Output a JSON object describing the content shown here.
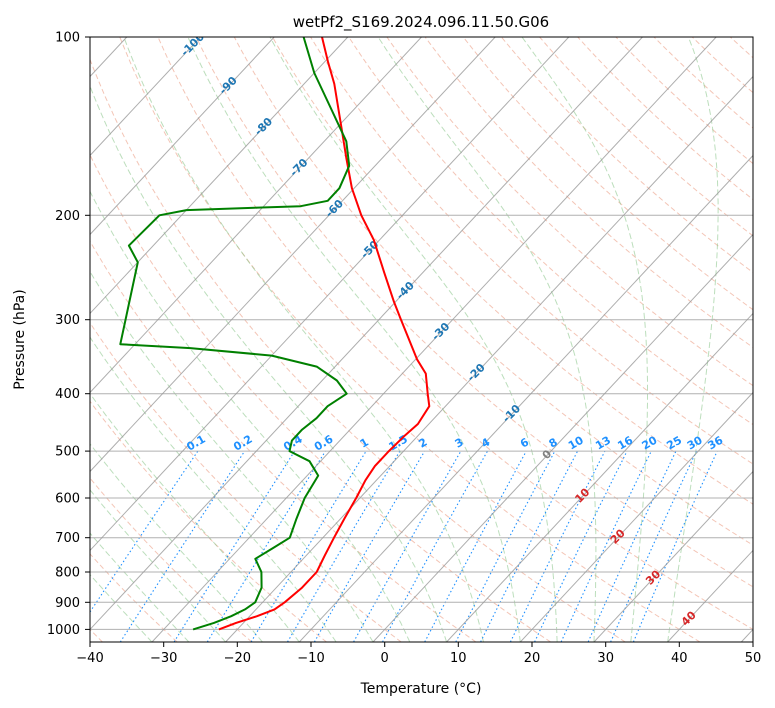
{
  "chart_data": {
    "type": "line",
    "title": "wetPf2_S169.2024.096.11.50.G06",
    "xlabel": "Temperature (°C)",
    "ylabel": "Pressure (hPa)",
    "xlim": [
      -40,
      50
    ],
    "ylim": [
      1050,
      100
    ],
    "y_scale": "log",
    "grid": true,
    "x_ticks": [
      -40,
      -30,
      -20,
      -10,
      0,
      10,
      20,
      30,
      40,
      50
    ],
    "x_tick_labels": [
      "−40",
      "−30",
      "−20",
      "−10",
      "0",
      "10",
      "20",
      "30",
      "40",
      "50"
    ],
    "y_ticks": [
      1000,
      900,
      800,
      700,
      600,
      500,
      400,
      300,
      200,
      100
    ],
    "y_tick_labels": [
      "1000",
      "900",
      "800",
      "700",
      "600",
      "500",
      "400",
      "300",
      "200",
      "100"
    ],
    "skew_deg_per_decade": 75,
    "colors": {
      "temperature": "#ff0000",
      "dewpoint": "#008000",
      "dry_adiabat": "#e9967a",
      "moist_adiabat": "#90c890",
      "mixing_ratio": "#1e90ff",
      "isotherm": "#999999",
      "isotherm_label": "#1f77b4",
      "warm_isotherm_label": "#d62728",
      "zero_isotherm_label": "#808080",
      "grid": "#b0b0b0"
    },
    "isotherm_labels": [
      {
        "text": "-100",
        "t": -100
      },
      {
        "text": "-90",
        "t": -90
      },
      {
        "text": "-80",
        "t": -80
      },
      {
        "text": "-70",
        "t": -70
      },
      {
        "text": "-60",
        "t": -60
      },
      {
        "text": "-50",
        "t": -50
      },
      {
        "text": "-40",
        "t": -40
      },
      {
        "text": "-30",
        "t": -30
      },
      {
        "text": "-20",
        "t": -20
      },
      {
        "text": "-10",
        "t": -10
      },
      {
        "text": "0",
        "t": 0
      },
      {
        "text": "10",
        "t": 10
      },
      {
        "text": "20",
        "t": 20
      },
      {
        "text": "30",
        "t": 30
      },
      {
        "text": "40",
        "t": 40
      }
    ],
    "mixing_ratio_labels": [
      "0.1",
      "0.2",
      "0.4",
      "0.6",
      "1",
      "1.5",
      "2",
      "3",
      "4",
      "6",
      "8",
      "10",
      "13",
      "16",
      "20",
      "25",
      "30",
      "36"
    ],
    "mixing_ratio_values": [
      0.1,
      0.2,
      0.4,
      0.6,
      1,
      1.5,
      2,
      3,
      4,
      6,
      8,
      10,
      13,
      16,
      20,
      25,
      30,
      36
    ],
    "series": [
      {
        "key": "temperature",
        "points": [
          {
            "p": 1000,
            "t": -22.5
          },
          {
            "p": 975,
            "t": -21.0
          },
          {
            "p": 950,
            "t": -19.0
          },
          {
            "p": 925,
            "t": -17.5
          },
          {
            "p": 900,
            "t": -17.0
          },
          {
            "p": 850,
            "t": -16.5
          },
          {
            "p": 800,
            "t": -16.5
          },
          {
            "p": 750,
            "t": -17.5
          },
          {
            "p": 700,
            "t": -18.5
          },
          {
            "p": 650,
            "t": -19.5
          },
          {
            "p": 600,
            "t": -20.5
          },
          {
            "p": 560,
            "t": -21.5
          },
          {
            "p": 530,
            "t": -22.0
          },
          {
            "p": 500,
            "t": -22.0
          },
          {
            "p": 470,
            "t": -21.8
          },
          {
            "p": 450,
            "t": -21.5
          },
          {
            "p": 420,
            "t": -22.2
          },
          {
            "p": 400,
            "t": -24.0
          },
          {
            "p": 370,
            "t": -26.8
          },
          {
            "p": 350,
            "t": -29.8
          },
          {
            "p": 300,
            "t": -37.0
          },
          {
            "p": 280,
            "t": -40.2
          },
          {
            "p": 250,
            "t": -45.2
          },
          {
            "p": 220,
            "t": -50.8
          },
          {
            "p": 200,
            "t": -55.6
          },
          {
            "p": 180,
            "t": -60.3
          },
          {
            "p": 160,
            "t": -64.9
          },
          {
            "p": 140,
            "t": -70.0
          },
          {
            "p": 120,
            "t": -75.9
          },
          {
            "p": 110,
            "t": -79.6
          },
          {
            "p": 100,
            "t": -83.5
          }
        ]
      },
      {
        "key": "dewpoint",
        "points": [
          {
            "p": 1000,
            "t": -26.0
          },
          {
            "p": 975,
            "t": -24.0
          },
          {
            "p": 950,
            "t": -22.5
          },
          {
            "p": 925,
            "t": -21.5
          },
          {
            "p": 900,
            "t": -21.0
          },
          {
            "p": 850,
            "t": -22.0
          },
          {
            "p": 800,
            "t": -24.0
          },
          {
            "p": 760,
            "t": -26.5
          },
          {
            "p": 730,
            "t": -25.5
          },
          {
            "p": 700,
            "t": -24.5
          },
          {
            "p": 650,
            "t": -26.0
          },
          {
            "p": 600,
            "t": -27.5
          },
          {
            "p": 550,
            "t": -28.5
          },
          {
            "p": 520,
            "t": -31.5
          },
          {
            "p": 500,
            "t": -35.5
          },
          {
            "p": 480,
            "t": -36.5
          },
          {
            "p": 460,
            "t": -36.5
          },
          {
            "p": 440,
            "t": -36.0
          },
          {
            "p": 420,
            "t": -36.0
          },
          {
            "p": 400,
            "t": -35.0
          },
          {
            "p": 380,
            "t": -38.0
          },
          {
            "p": 360,
            "t": -42.5
          },
          {
            "p": 345,
            "t": -50.0
          },
          {
            "p": 335,
            "t": -62.0
          },
          {
            "p": 330,
            "t": -72.0
          },
          {
            "p": 240,
            "t": -80.0
          },
          {
            "p": 225,
            "t": -83.3
          },
          {
            "p": 200,
            "t": -83.0
          },
          {
            "p": 196,
            "t": -80.0
          },
          {
            "p": 193,
            "t": -65.0
          },
          {
            "p": 189,
            "t": -62.0
          },
          {
            "p": 180,
            "t": -62.0
          },
          {
            "p": 165,
            "t": -63.5
          },
          {
            "p": 150,
            "t": -67.0
          },
          {
            "p": 130,
            "t": -74.0
          },
          {
            "p": 115,
            "t": -80.0
          },
          {
            "p": 100,
            "t": -86.0
          }
        ]
      }
    ]
  }
}
